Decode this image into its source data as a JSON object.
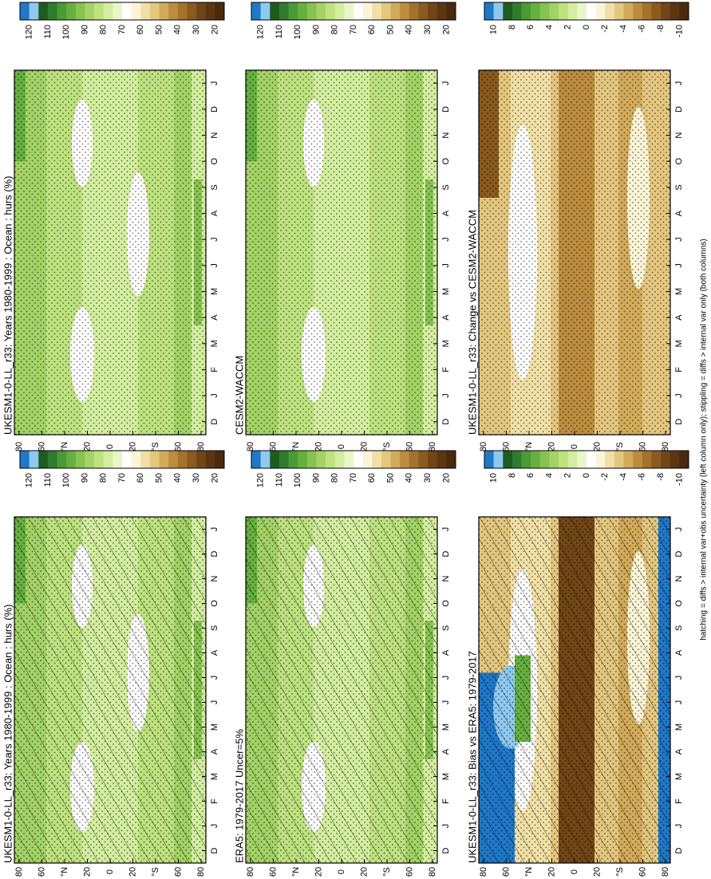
{
  "panels": [
    {
      "title": "UKESM1-0-LL_r33: Years 1980-1999 : Ocean : hurs (%)"
    },
    {
      "title": "UKESM1-0-LL_r33: Years 1980-1999 : Ocean : hurs (%)"
    },
    {
      "title": "ERA5: 1979-2017 Uncer=5%"
    },
    {
      "title": "CESM2-WACCM"
    },
    {
      "title": "UKESM1-0-LL_r33: Bias vs ERA5: 1979-2017"
    },
    {
      "title": "UKESM1-0-LL_r33: Change vs CESM2-WACCM"
    }
  ],
  "colorbars": {
    "hurs": [
      "120",
      "110",
      "100",
      "90",
      "80",
      "70",
      "60",
      "50",
      "40",
      "30",
      "20"
    ],
    "diff": [
      "10",
      "8",
      "6",
      "4",
      "2",
      "0",
      "-2",
      "-4",
      "-6",
      "-8",
      "-10"
    ]
  },
  "latitude_labels": [
    "80",
    "60",
    "°N",
    "20",
    "0",
    "20",
    "°S",
    "60",
    "80"
  ],
  "month_labels": [
    "D",
    "J",
    "F",
    "M",
    "A",
    "M",
    "J",
    "J",
    "A",
    "S",
    "O",
    "N",
    "D",
    "J"
  ],
  "footer": "hatching = diffs > internal var+obs uncertainty (left column only); stippling = diffs > internal var only (both columns)"
}
